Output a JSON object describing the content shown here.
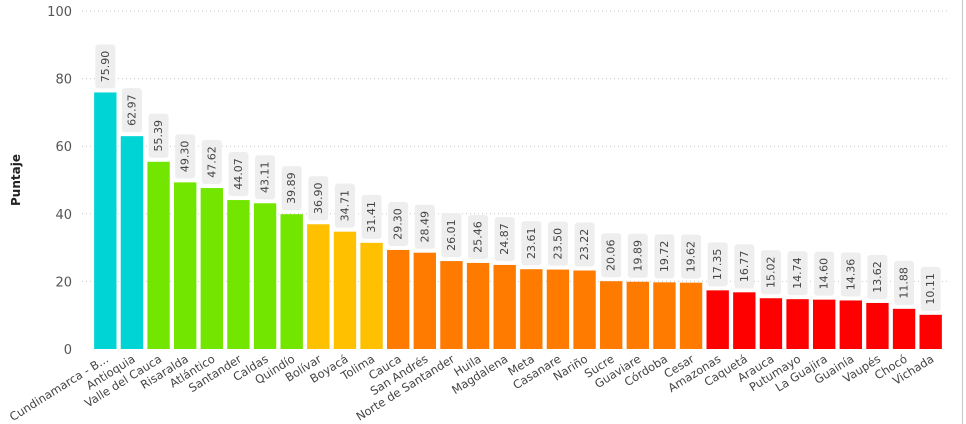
{
  "chart_data": {
    "type": "bar",
    "ylabel": "Puntaje",
    "xlabel": "",
    "ylim": [
      0,
      100
    ],
    "yticks": [
      0,
      20,
      40,
      60,
      80,
      100
    ],
    "grid": true,
    "categories": [
      "Cundinamarca - B...",
      "Antioquia",
      "Valle del Cauca",
      "Risaralda",
      "Atlántico",
      "Santander",
      "Caldas",
      "Quindío",
      "Bolívar",
      "Boyacá",
      "Tolima",
      "Cauca",
      "San Andrés",
      "Norte de Santander",
      "Huila",
      "Magdalena",
      "Meta",
      "Casanare",
      "Nariño",
      "Sucre",
      "Guaviare",
      "Córdoba",
      "Cesar",
      "Amazonas",
      "Caquetá",
      "Arauca",
      "Putumayo",
      "La Guajira",
      "Guainía",
      "Vaupés",
      "Chocó",
      "Vichada"
    ],
    "values": [
      75.9,
      62.97,
      55.39,
      49.3,
      47.62,
      44.07,
      43.11,
      39.89,
      36.9,
      34.71,
      31.41,
      29.3,
      28.49,
      26.01,
      25.46,
      24.87,
      23.61,
      23.5,
      23.22,
      20.06,
      19.89,
      19.72,
      19.62,
      17.35,
      16.77,
      15.02,
      14.74,
      14.6,
      14.36,
      13.62,
      11.88,
      10.11
    ],
    "data_labels": [
      "75.90",
      "62.97",
      "55.39",
      "49.30",
      "47.62",
      "44.07",
      "43.11",
      "39.89",
      "36.90",
      "34.71",
      "31.41",
      "29.30",
      "28.49",
      "26.01",
      "25.46",
      "24.87",
      "23.61",
      "23.50",
      "23.22",
      "20.06",
      "19.89",
      "19.72",
      "19.62",
      "17.35",
      "16.77",
      "15.02",
      "14.74",
      "14.60",
      "14.36",
      "13.62",
      "11.88",
      "10.11"
    ],
    "colors": {
      "cyan": "#00D4D4",
      "green": "#73E600",
      "yellow": "#FFC000",
      "orange": "#FF7B00",
      "red": "#FF0000"
    },
    "bar_color_groups": [
      "cyan",
      "cyan",
      "green",
      "green",
      "green",
      "green",
      "green",
      "green",
      "yellow",
      "yellow",
      "yellow",
      "orange",
      "orange",
      "orange",
      "orange",
      "orange",
      "orange",
      "orange",
      "orange",
      "orange",
      "orange",
      "orange",
      "orange",
      "red",
      "red",
      "red",
      "red",
      "red",
      "red",
      "red",
      "red",
      "red"
    ]
  }
}
